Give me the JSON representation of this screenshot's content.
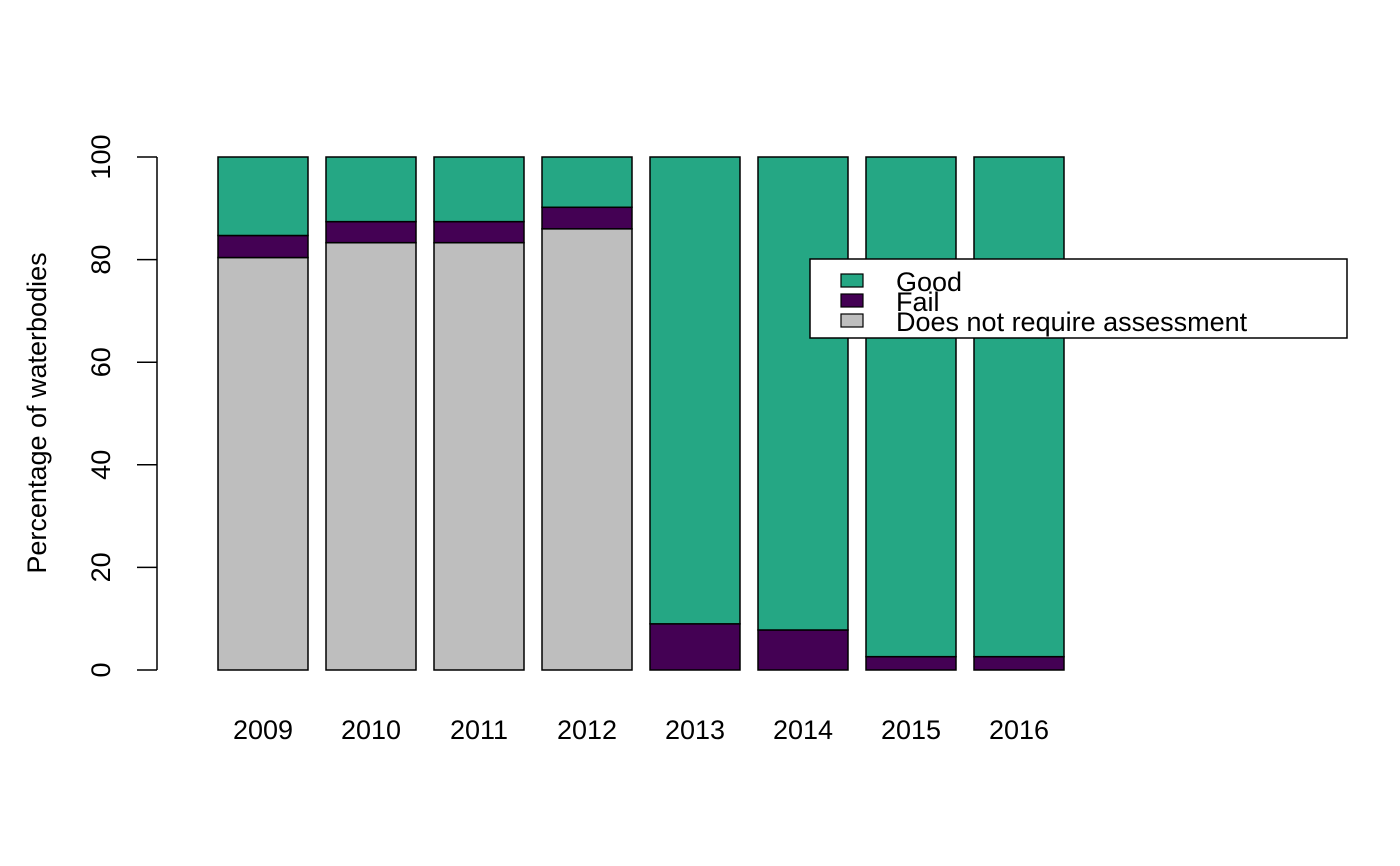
{
  "chart_data": {
    "type": "bar",
    "stacked": true,
    "title": "",
    "xlabel": "",
    "ylabel": "Percentage of waterbodies",
    "ylim": [
      0,
      100
    ],
    "yticks": [
      0,
      20,
      40,
      60,
      80,
      100
    ],
    "grid": false,
    "legend_position": "right",
    "categories": [
      "2009",
      "2010",
      "2011",
      "2012",
      "2013",
      "2014",
      "2015",
      "2016"
    ],
    "series": [
      {
        "name": "Does not require assessment",
        "color": "#BEBEBE",
        "values": [
          80.4,
          83.3,
          83.3,
          86.0,
          0,
          0,
          0,
          0
        ]
      },
      {
        "name": "Fail",
        "color": "#440154",
        "values": [
          4.3,
          4.1,
          4.1,
          4.2,
          9.0,
          7.8,
          2.6,
          2.6
        ]
      },
      {
        "name": "Good",
        "color": "#25A784",
        "values": [
          15.3,
          12.6,
          12.6,
          9.8,
          91.0,
          92.2,
          97.4,
          97.4
        ]
      }
    ],
    "legend_order": [
      "Good",
      "Fail",
      "Does not require assessment"
    ]
  }
}
